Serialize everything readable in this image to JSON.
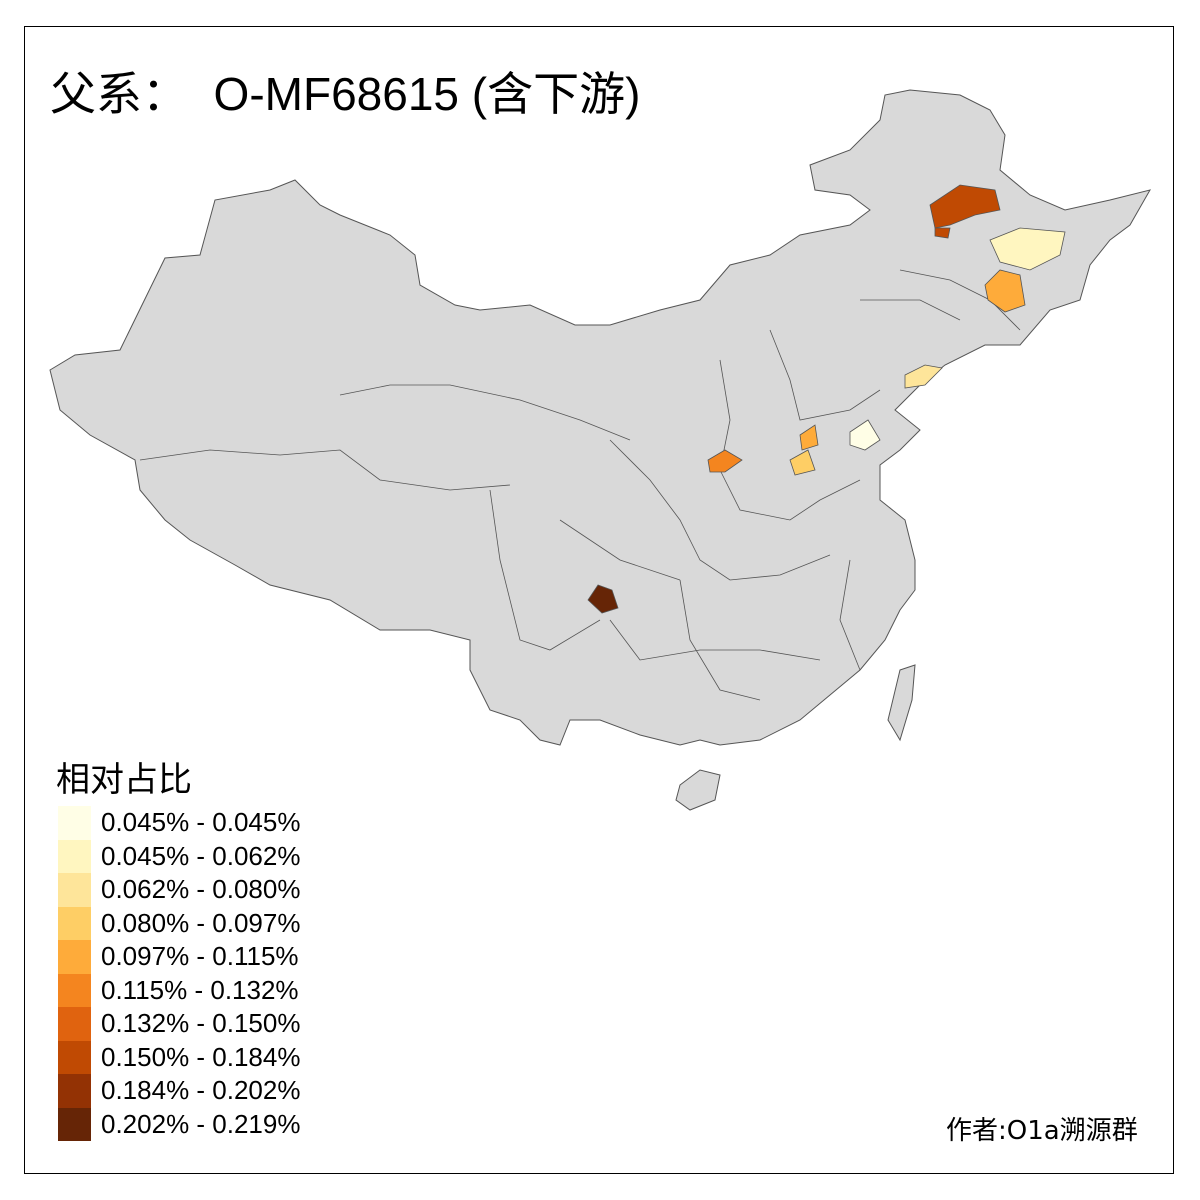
{
  "title": "父系：  O-MF68615 (含下游)",
  "legend": {
    "title": "相对占比",
    "items": [
      {
        "label": "0.045% - 0.045%",
        "color": "#FFFEE6"
      },
      {
        "label": "0.045% - 0.062%",
        "color": "#FFF6C0"
      },
      {
        "label": "0.062% - 0.080%",
        "color": "#FEE59A"
      },
      {
        "label": "0.080% - 0.097%",
        "color": "#FECE65"
      },
      {
        "label": "0.097% - 0.115%",
        "color": "#FEAB3A"
      },
      {
        "label": "0.115% - 0.132%",
        "color": "#F4851F"
      },
      {
        "label": "0.132% - 0.150%",
        "color": "#E0630F"
      },
      {
        "label": "0.150% - 0.184%",
        "color": "#C04A03"
      },
      {
        "label": "0.184% - 0.202%",
        "color": "#933204"
      },
      {
        "label": "0.202% - 0.219%",
        "color": "#662506"
      }
    ]
  },
  "map": {
    "base_color": "#D9D9D9",
    "border_color": "#555555"
  },
  "author": "作者:O1a溯源群"
}
